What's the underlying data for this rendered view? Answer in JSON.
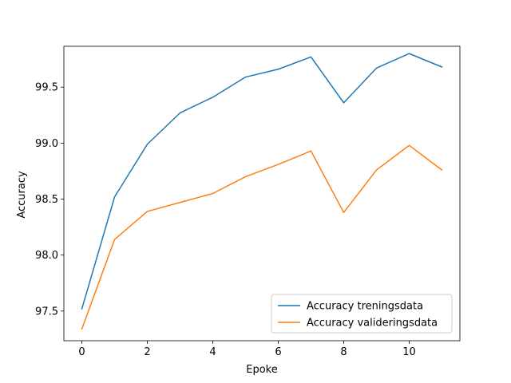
{
  "chart_data": {
    "type": "line",
    "title": "",
    "xlabel": "Epoke",
    "ylabel": "Accuracy",
    "xlim": [
      -0.55,
      11.55
    ],
    "ylim": [
      97.235,
      99.865
    ],
    "xticks": [
      0,
      2,
      4,
      6,
      8,
      10
    ],
    "xtick_labels": [
      "0",
      "2",
      "4",
      "6",
      "8",
      "10"
    ],
    "yticks": [
      97.5,
      98.0,
      98.5,
      99.0,
      99.5
    ],
    "ytick_labels": [
      "97.5",
      "98.0",
      "98.5",
      "99.0",
      "99.5"
    ],
    "grid": false,
    "legend_position": "lower-right",
    "x": [
      0,
      1,
      2,
      3,
      4,
      5,
      6,
      7,
      8,
      9,
      10,
      11
    ],
    "series": [
      {
        "name": "Accuracy treningsdata",
        "color": "#1f77b4",
        "values": [
          97.52,
          98.52,
          98.99,
          99.27,
          99.41,
          99.59,
          99.66,
          99.77,
          99.36,
          99.67,
          99.8,
          99.68
        ]
      },
      {
        "name": "Accuracy valideringsdata",
        "color": "#ff7f0e",
        "values": [
          97.34,
          98.14,
          98.39,
          98.47,
          98.55,
          98.7,
          98.81,
          98.93,
          98.38,
          98.76,
          98.98,
          98.76
        ]
      }
    ]
  }
}
